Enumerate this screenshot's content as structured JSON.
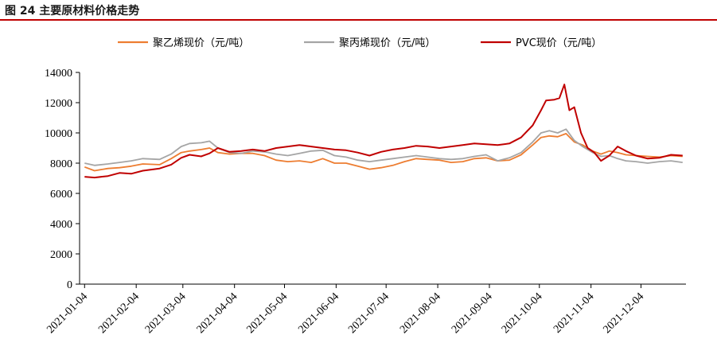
{
  "figure": {
    "title": "图 24 主要原材料价格走势",
    "rule_color": "#c00000"
  },
  "chart_data": {
    "type": "line",
    "title": "",
    "xlabel": "",
    "ylabel": "",
    "ylim": [
      0,
      14000
    ],
    "yticks": [
      0,
      2000,
      4000,
      6000,
      8000,
      10000,
      12000,
      14000
    ],
    "xlim": [
      "2021-01-01",
      "2021-12-31"
    ],
    "xticks": [
      "2021-01-04",
      "2021-02-04",
      "2021-03-04",
      "2021-04-04",
      "2021-05-04",
      "2021-06-04",
      "2021-07-04",
      "2021-08-04",
      "2021-09-04",
      "2021-10-04",
      "2021-11-04",
      "2021-12-04"
    ],
    "grid": false,
    "legend_position": "top",
    "series": [
      {
        "name": "聚乙烯现价（元/吨）",
        "color": "#ed7d31",
        "points": [
          [
            "2021-01-04",
            7750
          ],
          [
            "2021-01-10",
            7500
          ],
          [
            "2021-01-18",
            7650
          ],
          [
            "2021-01-25",
            7700
          ],
          [
            "2021-02-01",
            7800
          ],
          [
            "2021-02-08",
            7950
          ],
          [
            "2021-02-18",
            7900
          ],
          [
            "2021-02-25",
            8300
          ],
          [
            "2021-03-03",
            8700
          ],
          [
            "2021-03-08",
            8800
          ],
          [
            "2021-03-15",
            8900
          ],
          [
            "2021-03-20",
            9000
          ],
          [
            "2021-03-25",
            8700
          ],
          [
            "2021-04-01",
            8600
          ],
          [
            "2021-04-08",
            8650
          ],
          [
            "2021-04-15",
            8650
          ],
          [
            "2021-04-22",
            8500
          ],
          [
            "2021-04-29",
            8200
          ],
          [
            "2021-05-06",
            8100
          ],
          [
            "2021-05-13",
            8150
          ],
          [
            "2021-05-20",
            8050
          ],
          [
            "2021-05-27",
            8300
          ],
          [
            "2021-06-03",
            8000
          ],
          [
            "2021-06-10",
            8000
          ],
          [
            "2021-06-17",
            7800
          ],
          [
            "2021-06-24",
            7600
          ],
          [
            "2021-07-01",
            7700
          ],
          [
            "2021-07-08",
            7850
          ],
          [
            "2021-07-15",
            8100
          ],
          [
            "2021-07-22",
            8300
          ],
          [
            "2021-07-29",
            8250
          ],
          [
            "2021-08-05",
            8200
          ],
          [
            "2021-08-12",
            8050
          ],
          [
            "2021-08-19",
            8100
          ],
          [
            "2021-08-26",
            8300
          ],
          [
            "2021-09-02",
            8350
          ],
          [
            "2021-09-09",
            8150
          ],
          [
            "2021-09-16",
            8200
          ],
          [
            "2021-09-23",
            8550
          ],
          [
            "2021-09-30",
            9200
          ],
          [
            "2021-10-05",
            9700
          ],
          [
            "2021-10-10",
            9800
          ],
          [
            "2021-10-15",
            9750
          ],
          [
            "2021-10-20",
            9950
          ],
          [
            "2021-10-25",
            9400
          ],
          [
            "2021-10-30",
            9200
          ],
          [
            "2021-11-05",
            8800
          ],
          [
            "2021-11-10",
            8600
          ],
          [
            "2021-11-15",
            8800
          ],
          [
            "2021-11-20",
            8700
          ],
          [
            "2021-11-25",
            8550
          ],
          [
            "2021-12-01",
            8500
          ],
          [
            "2021-12-08",
            8450
          ],
          [
            "2021-12-15",
            8400
          ],
          [
            "2021-12-22",
            8500
          ],
          [
            "2021-12-29",
            8450
          ]
        ]
      },
      {
        "name": "聚丙烯现价（元/吨）",
        "color": "#a5a5a5",
        "points": [
          [
            "2021-01-04",
            8000
          ],
          [
            "2021-01-10",
            7850
          ],
          [
            "2021-01-18",
            7950
          ],
          [
            "2021-01-25",
            8050
          ],
          [
            "2021-02-01",
            8150
          ],
          [
            "2021-02-08",
            8300
          ],
          [
            "2021-02-18",
            8250
          ],
          [
            "2021-02-25",
            8600
          ],
          [
            "2021-03-03",
            9100
          ],
          [
            "2021-03-08",
            9300
          ],
          [
            "2021-03-15",
            9350
          ],
          [
            "2021-03-20",
            9450
          ],
          [
            "2021-03-25",
            9000
          ],
          [
            "2021-04-01",
            8700
          ],
          [
            "2021-04-08",
            8650
          ],
          [
            "2021-04-15",
            8800
          ],
          [
            "2021-04-22",
            8750
          ],
          [
            "2021-04-29",
            8600
          ],
          [
            "2021-05-06",
            8500
          ],
          [
            "2021-05-13",
            8650
          ],
          [
            "2021-05-20",
            8800
          ],
          [
            "2021-05-27",
            8850
          ],
          [
            "2021-06-03",
            8500
          ],
          [
            "2021-06-10",
            8400
          ],
          [
            "2021-06-17",
            8200
          ],
          [
            "2021-06-24",
            8100
          ],
          [
            "2021-07-01",
            8200
          ],
          [
            "2021-07-08",
            8300
          ],
          [
            "2021-07-15",
            8400
          ],
          [
            "2021-07-22",
            8500
          ],
          [
            "2021-07-29",
            8400
          ],
          [
            "2021-08-05",
            8300
          ],
          [
            "2021-08-12",
            8250
          ],
          [
            "2021-08-19",
            8300
          ],
          [
            "2021-08-26",
            8450
          ],
          [
            "2021-09-02",
            8550
          ],
          [
            "2021-09-09",
            8150
          ],
          [
            "2021-09-16",
            8350
          ],
          [
            "2021-09-23",
            8700
          ],
          [
            "2021-09-30",
            9400
          ],
          [
            "2021-10-05",
            10000
          ],
          [
            "2021-10-10",
            10150
          ],
          [
            "2021-10-15",
            10000
          ],
          [
            "2021-10-20",
            10250
          ],
          [
            "2021-10-25",
            9500
          ],
          [
            "2021-10-30",
            9100
          ],
          [
            "2021-11-05",
            8700
          ],
          [
            "2021-11-10",
            8450
          ],
          [
            "2021-11-15",
            8500
          ],
          [
            "2021-11-20",
            8300
          ],
          [
            "2021-11-25",
            8150
          ],
          [
            "2021-12-01",
            8100
          ],
          [
            "2021-12-08",
            8000
          ],
          [
            "2021-12-15",
            8100
          ],
          [
            "2021-12-22",
            8150
          ],
          [
            "2021-12-29",
            8050
          ]
        ]
      },
      {
        "name": "PVC现价（元/吨）",
        "color": "#c00000",
        "points": [
          [
            "2021-01-04",
            7100
          ],
          [
            "2021-01-10",
            7050
          ],
          [
            "2021-01-18",
            7150
          ],
          [
            "2021-01-25",
            7350
          ],
          [
            "2021-02-01",
            7300
          ],
          [
            "2021-02-08",
            7500
          ],
          [
            "2021-02-18",
            7650
          ],
          [
            "2021-02-25",
            7900
          ],
          [
            "2021-03-03",
            8350
          ],
          [
            "2021-03-08",
            8550
          ],
          [
            "2021-03-15",
            8450
          ],
          [
            "2021-03-20",
            8650
          ],
          [
            "2021-03-25",
            9000
          ],
          [
            "2021-04-01",
            8750
          ],
          [
            "2021-04-08",
            8800
          ],
          [
            "2021-04-15",
            8900
          ],
          [
            "2021-04-22",
            8800
          ],
          [
            "2021-04-29",
            9000
          ],
          [
            "2021-05-06",
            9100
          ],
          [
            "2021-05-13",
            9200
          ],
          [
            "2021-05-20",
            9100
          ],
          [
            "2021-05-27",
            9000
          ],
          [
            "2021-06-03",
            8900
          ],
          [
            "2021-06-10",
            8850
          ],
          [
            "2021-06-17",
            8700
          ],
          [
            "2021-06-24",
            8500
          ],
          [
            "2021-07-01",
            8750
          ],
          [
            "2021-07-08",
            8900
          ],
          [
            "2021-07-15",
            9000
          ],
          [
            "2021-07-22",
            9150
          ],
          [
            "2021-07-29",
            9100
          ],
          [
            "2021-08-05",
            9000
          ],
          [
            "2021-08-12",
            9100
          ],
          [
            "2021-08-19",
            9200
          ],
          [
            "2021-08-26",
            9300
          ],
          [
            "2021-09-02",
            9250
          ],
          [
            "2021-09-09",
            9200
          ],
          [
            "2021-09-16",
            9300
          ],
          [
            "2021-09-23",
            9700
          ],
          [
            "2021-09-30",
            10500
          ],
          [
            "2021-10-05",
            11500
          ],
          [
            "2021-10-08",
            12150
          ],
          [
            "2021-10-13",
            12200
          ],
          [
            "2021-10-16",
            12300
          ],
          [
            "2021-10-19",
            13200
          ],
          [
            "2021-10-22",
            11500
          ],
          [
            "2021-10-25",
            11700
          ],
          [
            "2021-10-29",
            10000
          ],
          [
            "2021-11-02",
            9000
          ],
          [
            "2021-11-06",
            8700
          ],
          [
            "2021-11-10",
            8150
          ],
          [
            "2021-11-15",
            8500
          ],
          [
            "2021-11-20",
            9100
          ],
          [
            "2021-11-25",
            8800
          ],
          [
            "2021-12-01",
            8500
          ],
          [
            "2021-12-08",
            8300
          ],
          [
            "2021-12-15",
            8350
          ],
          [
            "2021-12-22",
            8550
          ],
          [
            "2021-12-29",
            8500
          ]
        ]
      }
    ]
  }
}
